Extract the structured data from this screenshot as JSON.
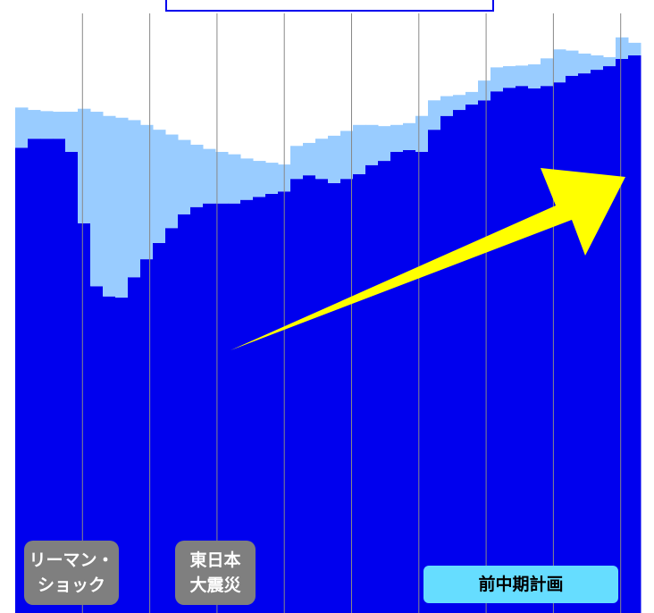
{
  "chart_data": {
    "type": "bar",
    "stacked": true,
    "ylim": [
      0,
      100
    ],
    "categories": [
      null,
      null,
      null,
      null,
      null,
      null,
      null,
      null,
      null,
      null,
      null,
      null,
      null,
      null,
      null,
      null,
      null,
      null,
      null,
      null,
      null,
      null,
      null,
      null,
      null,
      null,
      null,
      null,
      null,
      null,
      null,
      null,
      null,
      null,
      null,
      null,
      null,
      null,
      null,
      null,
      null,
      null,
      null,
      null,
      null,
      null,
      null,
      null,
      null,
      null
    ],
    "series": [
      {
        "color": "#0000ee",
        "values": [
          77.6,
          79.1,
          79.1,
          79.1,
          76.9,
          65.0,
          54.5,
          52.8,
          52.6,
          56.0,
          59.0,
          61.7,
          64.2,
          66.5,
          67.7,
          68.3,
          68.3,
          68.3,
          68.9,
          69.4,
          69.9,
          70.3,
          72.4,
          73.0,
          72.4,
          71.7,
          72.4,
          73.2,
          74.7,
          75.4,
          76.9,
          77.2,
          76.9,
          80.6,
          82.9,
          83.9,
          84.8,
          85.5,
          87.0,
          87.6,
          87.9,
          87.5,
          87.9,
          88.5,
          89.6,
          90.0,
          90.6,
          91.2,
          92.4,
          93.0
        ]
      },
      {
        "color": "#99ccff",
        "values": [
          6.7,
          4.8,
          4.6,
          4.5,
          6.7,
          19.1,
          29.1,
          30.1,
          30.0,
          26.2,
          22.4,
          18.9,
          15.6,
          12.4,
          10.4,
          9.1,
          8.6,
          8.2,
          6.9,
          6.0,
          5.2,
          4.5,
          5.5,
          5.4,
          6.7,
          7.9,
          8.0,
          8.2,
          6.7,
          5.8,
          4.5,
          4.5,
          6.0,
          4.9,
          3.3,
          2.5,
          2.1,
          3.3,
          4.0,
          3.6,
          3.4,
          4.0,
          4.6,
          5.5,
          4.2,
          3.3,
          2.4,
          1.5,
          3.6,
          2.1
        ]
      }
    ],
    "annotations": [
      {
        "lines": [
          "リーマン・",
          "ショック"
        ]
      },
      {
        "lines": [
          "東日本",
          "大震災"
        ]
      },
      {
        "lines": [
          "前中期計画"
        ]
      }
    ]
  }
}
